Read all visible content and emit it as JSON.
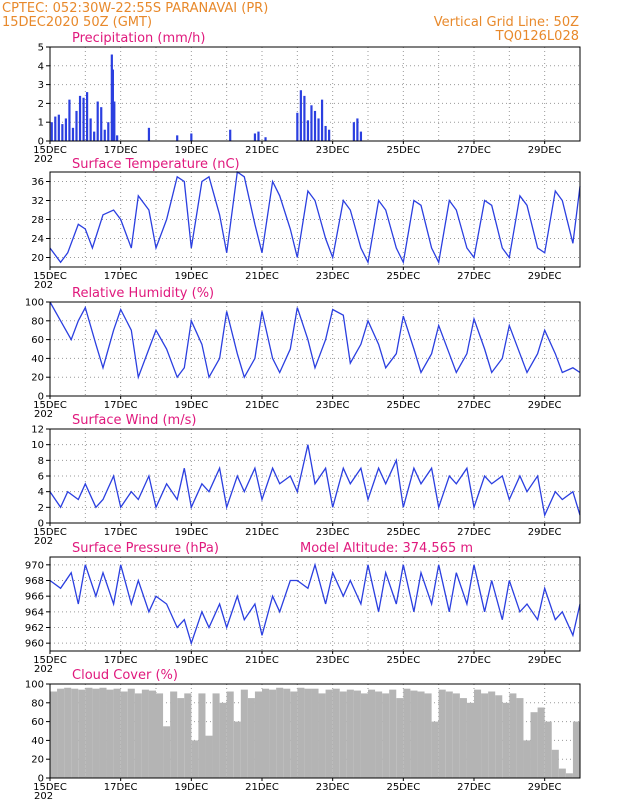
{
  "header": {
    "line1_left": "CPTEC:   052:30W-22:55S   PARANAVAI (PR)",
    "line2_left": "15DEC2020 50Z (GMT)",
    "line1_right": "Vertical Grid Line: 50Z",
    "line2_right": "TQ0126L028",
    "year_fragment": "202"
  },
  "colors": {
    "header": "#e8892b",
    "title": "#e0197d",
    "series": "#2b3fe0",
    "bar": "#2b3fe0",
    "cloud": "#b4b4b4",
    "grid": "#9a9a9a"
  },
  "x_axis": {
    "start_day": 15,
    "end_day": 30,
    "labels": [
      "15DEC",
      "17DEC",
      "19DEC",
      "21DEC",
      "23DEC",
      "25DEC",
      "27DEC",
      "29DEC"
    ],
    "label_days": [
      15,
      17,
      19,
      21,
      23,
      25,
      27,
      29
    ]
  },
  "chart_data": [
    {
      "type": "bar",
      "title": "Precipitation (mm/h)",
      "ylim": [
        0,
        5
      ],
      "yticks": [
        0,
        1,
        2,
        3,
        4,
        5
      ],
      "x": [
        15.05,
        15.15,
        15.25,
        15.35,
        15.45,
        15.55,
        15.65,
        15.75,
        15.85,
        15.95,
        16.05,
        16.15,
        16.25,
        16.35,
        16.45,
        16.55,
        16.65,
        16.75,
        16.78,
        16.82,
        16.9,
        17.8,
        18.6,
        19.0,
        20.1,
        20.8,
        20.9,
        21.1,
        22.0,
        22.1,
        22.2,
        22.3,
        22.4,
        22.5,
        22.6,
        22.7,
        22.8,
        22.9,
        23.6,
        23.7,
        23.8
      ],
      "values": [
        1.0,
        1.3,
        1.4,
        0.9,
        1.2,
        2.2,
        0.7,
        1.6,
        2.4,
        2.3,
        2.6,
        1.2,
        0.5,
        2.1,
        1.8,
        0.6,
        1.0,
        4.6,
        3.8,
        2.1,
        0.3,
        0.7,
        0.3,
        0.4,
        0.6,
        0.4,
        0.5,
        0.2,
        1.5,
        2.7,
        2.4,
        1.1,
        1.9,
        1.6,
        1.2,
        2.2,
        0.8,
        0.6,
        1.0,
        1.2,
        0.5
      ]
    },
    {
      "type": "line",
      "title": "Surface Temperature (nC)",
      "ylim": [
        18,
        38
      ],
      "yticks": [
        20,
        24,
        28,
        32,
        36
      ],
      "x": [
        15.0,
        15.3,
        15.5,
        15.8,
        16.0,
        16.2,
        16.5,
        16.8,
        17.0,
        17.3,
        17.5,
        17.8,
        18.0,
        18.3,
        18.6,
        18.8,
        19.0,
        19.3,
        19.5,
        19.8,
        20.0,
        20.3,
        20.5,
        20.8,
        21.0,
        21.3,
        21.5,
        21.8,
        22.0,
        22.3,
        22.5,
        22.8,
        23.0,
        23.3,
        23.5,
        23.8,
        24.0,
        24.3,
        24.5,
        24.8,
        25.0,
        25.3,
        25.5,
        25.8,
        26.0,
        26.3,
        26.5,
        26.8,
        27.0,
        27.3,
        27.5,
        27.8,
        28.0,
        28.3,
        28.5,
        28.8,
        29.0,
        29.3,
        29.5,
        29.8,
        30.0
      ],
      "values": [
        22,
        19,
        21,
        27,
        26,
        22,
        29,
        30,
        28,
        22,
        33,
        30,
        22,
        28,
        37,
        36,
        22,
        36,
        37,
        29,
        21,
        38,
        37,
        27,
        21,
        36,
        33,
        26,
        20,
        34,
        32,
        24,
        20,
        32,
        30,
        22,
        19,
        32,
        30,
        22,
        19,
        32,
        31,
        22,
        19,
        32,
        30,
        22,
        20,
        32,
        31,
        22,
        20,
        33,
        31,
        22,
        21,
        34,
        32,
        23,
        35
      ]
    },
    {
      "type": "line",
      "title": "Relative Humidity (%)",
      "ylim": [
        0,
        100
      ],
      "yticks": [
        0,
        20,
        40,
        60,
        80,
        100
      ],
      "x": [
        15.0,
        15.3,
        15.6,
        15.8,
        16.0,
        16.3,
        16.5,
        16.8,
        17.0,
        17.3,
        17.5,
        17.8,
        18.0,
        18.3,
        18.6,
        18.8,
        19.0,
        19.3,
        19.5,
        19.8,
        20.0,
        20.3,
        20.5,
        20.8,
        21.0,
        21.3,
        21.5,
        21.8,
        22.0,
        22.3,
        22.5,
        22.8,
        23.0,
        23.3,
        23.5,
        23.8,
        24.0,
        24.3,
        24.5,
        24.8,
        25.0,
        25.3,
        25.5,
        25.8,
        26.0,
        26.3,
        26.5,
        26.8,
        27.0,
        27.3,
        27.5,
        27.8,
        28.0,
        28.3,
        28.5,
        28.8,
        29.0,
        29.3,
        29.5,
        29.8,
        30.0
      ],
      "values": [
        100,
        80,
        60,
        80,
        94,
        55,
        30,
        70,
        92,
        70,
        20,
        50,
        70,
        50,
        20,
        30,
        80,
        55,
        20,
        40,
        90,
        45,
        20,
        40,
        90,
        40,
        25,
        50,
        94,
        60,
        30,
        60,
        92,
        86,
        35,
        55,
        80,
        55,
        30,
        45,
        85,
        50,
        25,
        45,
        75,
        45,
        25,
        45,
        82,
        50,
        25,
        40,
        75,
        45,
        25,
        45,
        70,
        45,
        25,
        30,
        25
      ]
    },
    {
      "type": "line",
      "title": "Surface Wind (m/s)",
      "ylim": [
        0,
        12
      ],
      "yticks": [
        0,
        2,
        4,
        6,
        8,
        10,
        12
      ],
      "x": [
        15.0,
        15.3,
        15.5,
        15.8,
        16.0,
        16.3,
        16.5,
        16.8,
        17.0,
        17.3,
        17.5,
        17.8,
        18.0,
        18.3,
        18.6,
        18.8,
        19.0,
        19.3,
        19.5,
        19.8,
        20.0,
        20.3,
        20.5,
        20.8,
        21.0,
        21.3,
        21.5,
        21.8,
        22.0,
        22.3,
        22.5,
        22.8,
        23.0,
        23.3,
        23.5,
        23.8,
        24.0,
        24.3,
        24.5,
        24.8,
        25.0,
        25.3,
        25.5,
        25.8,
        26.0,
        26.3,
        26.5,
        26.8,
        27.0,
        27.3,
        27.5,
        27.8,
        28.0,
        28.3,
        28.5,
        28.8,
        29.0,
        29.3,
        29.5,
        29.8,
        30.0
      ],
      "values": [
        4,
        2,
        4,
        3,
        5,
        2,
        3,
        6,
        2,
        4,
        3,
        6,
        2,
        5,
        3,
        7,
        2,
        5,
        4,
        7,
        2,
        6,
        4,
        7,
        3,
        7,
        5,
        6,
        4,
        10,
        5,
        7,
        2,
        7,
        5,
        7,
        3,
        7,
        5,
        8,
        2,
        7,
        5,
        7,
        2,
        6,
        5,
        7,
        2,
        6,
        5,
        6,
        3,
        6,
        4,
        6,
        1,
        4,
        3,
        4,
        1
      ]
    },
    {
      "type": "line",
      "title": "Surface Pressure (hPa)",
      "annotation": "Model Altitude: 374.565  m",
      "ylim": [
        959,
        971
      ],
      "yticks": [
        960,
        962,
        964,
        966,
        968,
        970
      ],
      "x": [
        15.0,
        15.3,
        15.6,
        15.8,
        16.0,
        16.3,
        16.5,
        16.8,
        17.0,
        17.3,
        17.5,
        17.8,
        18.0,
        18.3,
        18.6,
        18.8,
        19.0,
        19.3,
        19.5,
        19.8,
        20.0,
        20.3,
        20.5,
        20.8,
        21.0,
        21.3,
        21.5,
        21.8,
        22.0,
        22.3,
        22.5,
        22.8,
        23.0,
        23.3,
        23.5,
        23.8,
        24.0,
        24.3,
        24.5,
        24.8,
        25.0,
        25.3,
        25.5,
        25.8,
        26.0,
        26.3,
        26.5,
        26.8,
        27.0,
        27.3,
        27.5,
        27.8,
        28.0,
        28.3,
        28.5,
        28.8,
        29.0,
        29.3,
        29.5,
        29.8,
        30.0
      ],
      "values": [
        968,
        967,
        969,
        965,
        970,
        966,
        969,
        965,
        970,
        965,
        968,
        964,
        966,
        965,
        962,
        963,
        960,
        964,
        962,
        965,
        962,
        966,
        963,
        965,
        961,
        966,
        964,
        968,
        968,
        967,
        970,
        965,
        969,
        966,
        968,
        965,
        970,
        964,
        969,
        965,
        970,
        964,
        969,
        965,
        970,
        964,
        969,
        965,
        970,
        964,
        968,
        963,
        968,
        964,
        965,
        963,
        967,
        963,
        964,
        961,
        965
      ]
    },
    {
      "type": "bar",
      "title": "Cloud Cover (%)",
      "ylim": [
        0,
        100
      ],
      "yticks": [
        0,
        20,
        40,
        60,
        80,
        100
      ],
      "x": [
        15.0,
        15.2,
        15.4,
        15.6,
        15.8,
        16.0,
        16.2,
        16.4,
        16.6,
        16.8,
        17.0,
        17.2,
        17.4,
        17.6,
        17.8,
        18.0,
        18.2,
        18.4,
        18.6,
        18.8,
        19.0,
        19.2,
        19.4,
        19.6,
        19.8,
        20.0,
        20.2,
        20.4,
        20.6,
        20.8,
        21.0,
        21.2,
        21.4,
        21.6,
        21.8,
        22.0,
        22.2,
        22.4,
        22.6,
        22.8,
        23.0,
        23.2,
        23.4,
        23.6,
        23.8,
        24.0,
        24.2,
        24.4,
        24.6,
        24.8,
        25.0,
        25.2,
        25.4,
        25.6,
        25.8,
        26.0,
        26.2,
        26.4,
        26.6,
        26.8,
        27.0,
        27.2,
        27.4,
        27.6,
        27.8,
        28.0,
        28.2,
        28.4,
        28.6,
        28.8,
        29.0,
        29.2,
        29.4,
        29.6,
        29.8
      ],
      "values": [
        92,
        95,
        96,
        95,
        94,
        96,
        95,
        96,
        94,
        95,
        92,
        95,
        90,
        94,
        93,
        90,
        55,
        92,
        85,
        90,
        40,
        90,
        45,
        90,
        80,
        92,
        60,
        94,
        85,
        92,
        95,
        94,
        96,
        95,
        92,
        96,
        95,
        95,
        90,
        94,
        95,
        92,
        94,
        93,
        90,
        94,
        92,
        90,
        94,
        85,
        95,
        93,
        92,
        90,
        60,
        94,
        92,
        90,
        85,
        80,
        94,
        90,
        92,
        88,
        80,
        90,
        85,
        40,
        70,
        75,
        60,
        30,
        10,
        5,
        60
      ]
    }
  ]
}
